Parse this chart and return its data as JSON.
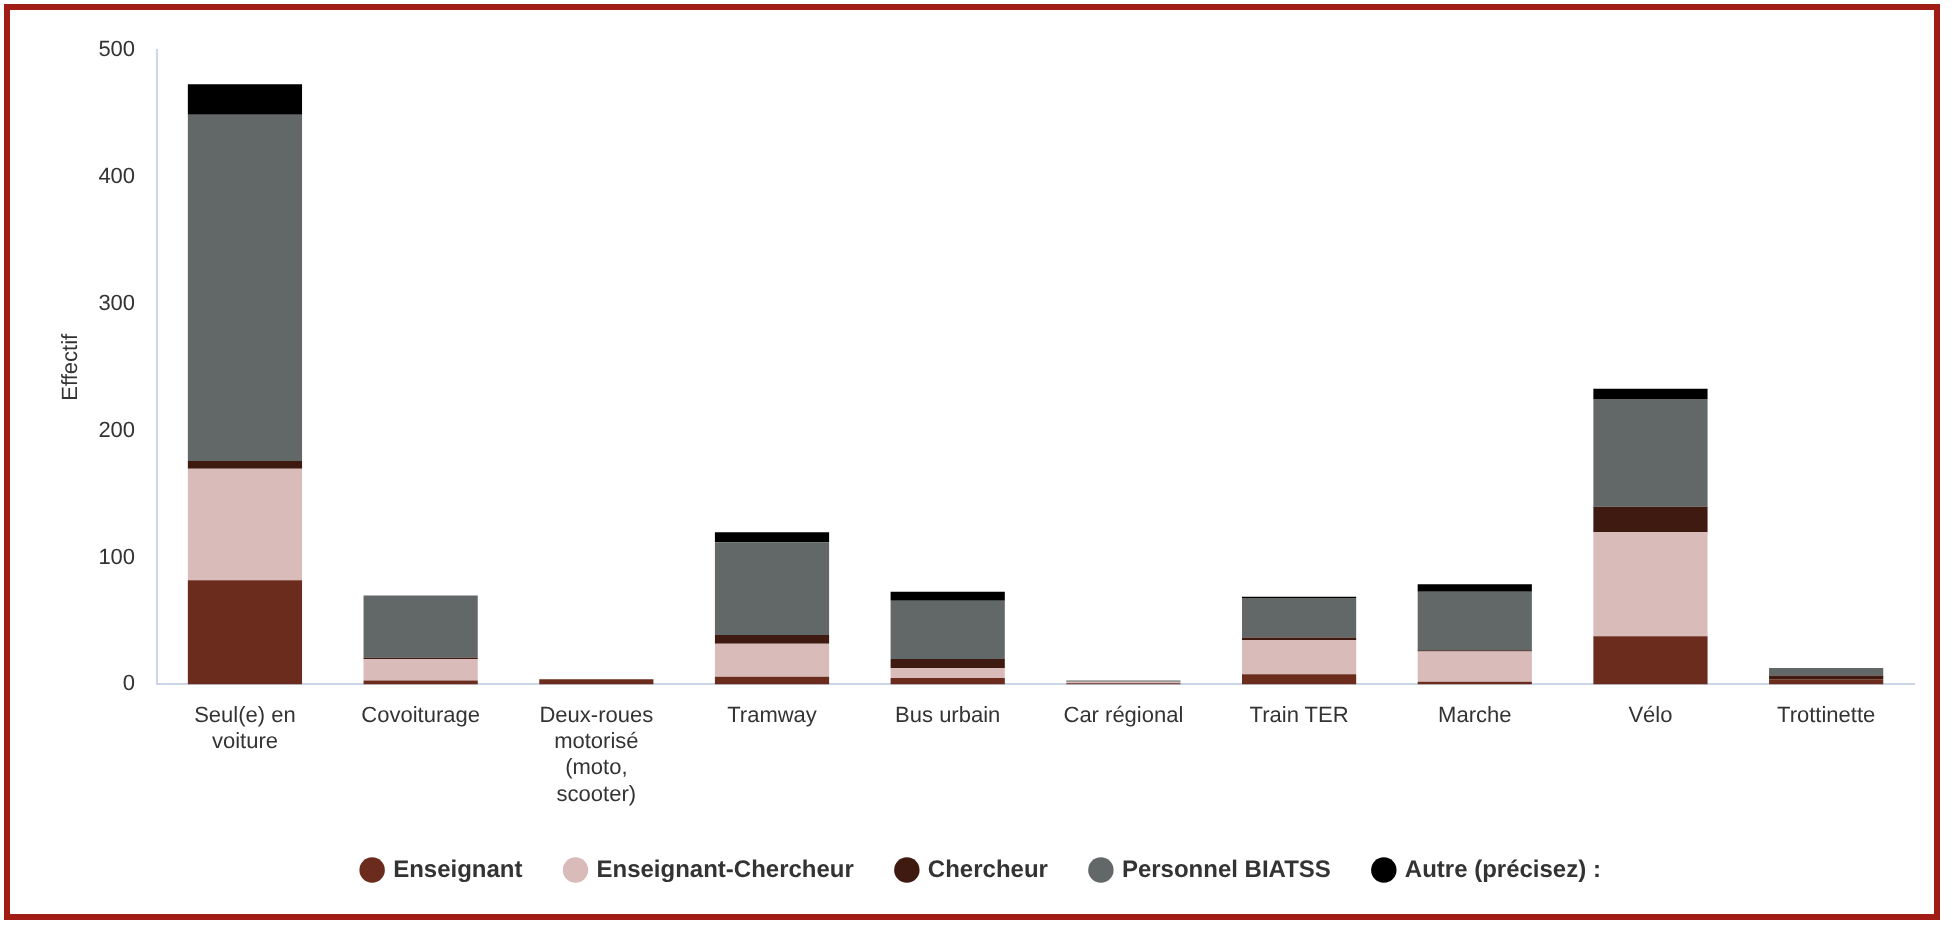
{
  "chart_data": {
    "type": "bar",
    "stacked": true,
    "ylabel": "Effectif",
    "categories": [
      "Seul(e) en voiture",
      "Covoiturage",
      "Deux-roues motorisé (moto, scooter)",
      "Tramway",
      "Bus urbain",
      "Car régional",
      "Train TER",
      "Marche",
      "Vélo",
      "Trottinette"
    ],
    "series": [
      {
        "name": "Enseignant",
        "color": "#6b2c1e",
        "values": [
          82,
          3,
          4,
          6,
          5,
          1,
          8,
          2,
          38,
          4
        ]
      },
      {
        "name": "Enseignant-Chercheur",
        "color": "#d9bcb9",
        "values": [
          88,
          17,
          null,
          26,
          8,
          1,
          27,
          24,
          82,
          0
        ]
      },
      {
        "name": "Chercheur",
        "color": "#3e1a10",
        "values": [
          6,
          1,
          0,
          7,
          7,
          0,
          2,
          1,
          20,
          3
        ]
      },
      {
        "name": "Personnel BIATSS",
        "color": "#626867",
        "values": [
          273,
          49,
          0,
          73,
          46,
          1,
          31,
          46,
          85,
          6
        ]
      },
      {
        "name": "Autre (précisez) :",
        "color": "#000000",
        "values": [
          24,
          0,
          0,
          8,
          7,
          0,
          1,
          6,
          8,
          0
        ]
      }
    ],
    "ylim": [
      0,
      500
    ],
    "yticks": [
      0,
      100,
      200,
      300,
      400,
      500
    ],
    "grid": false,
    "legend": "bottom"
  }
}
